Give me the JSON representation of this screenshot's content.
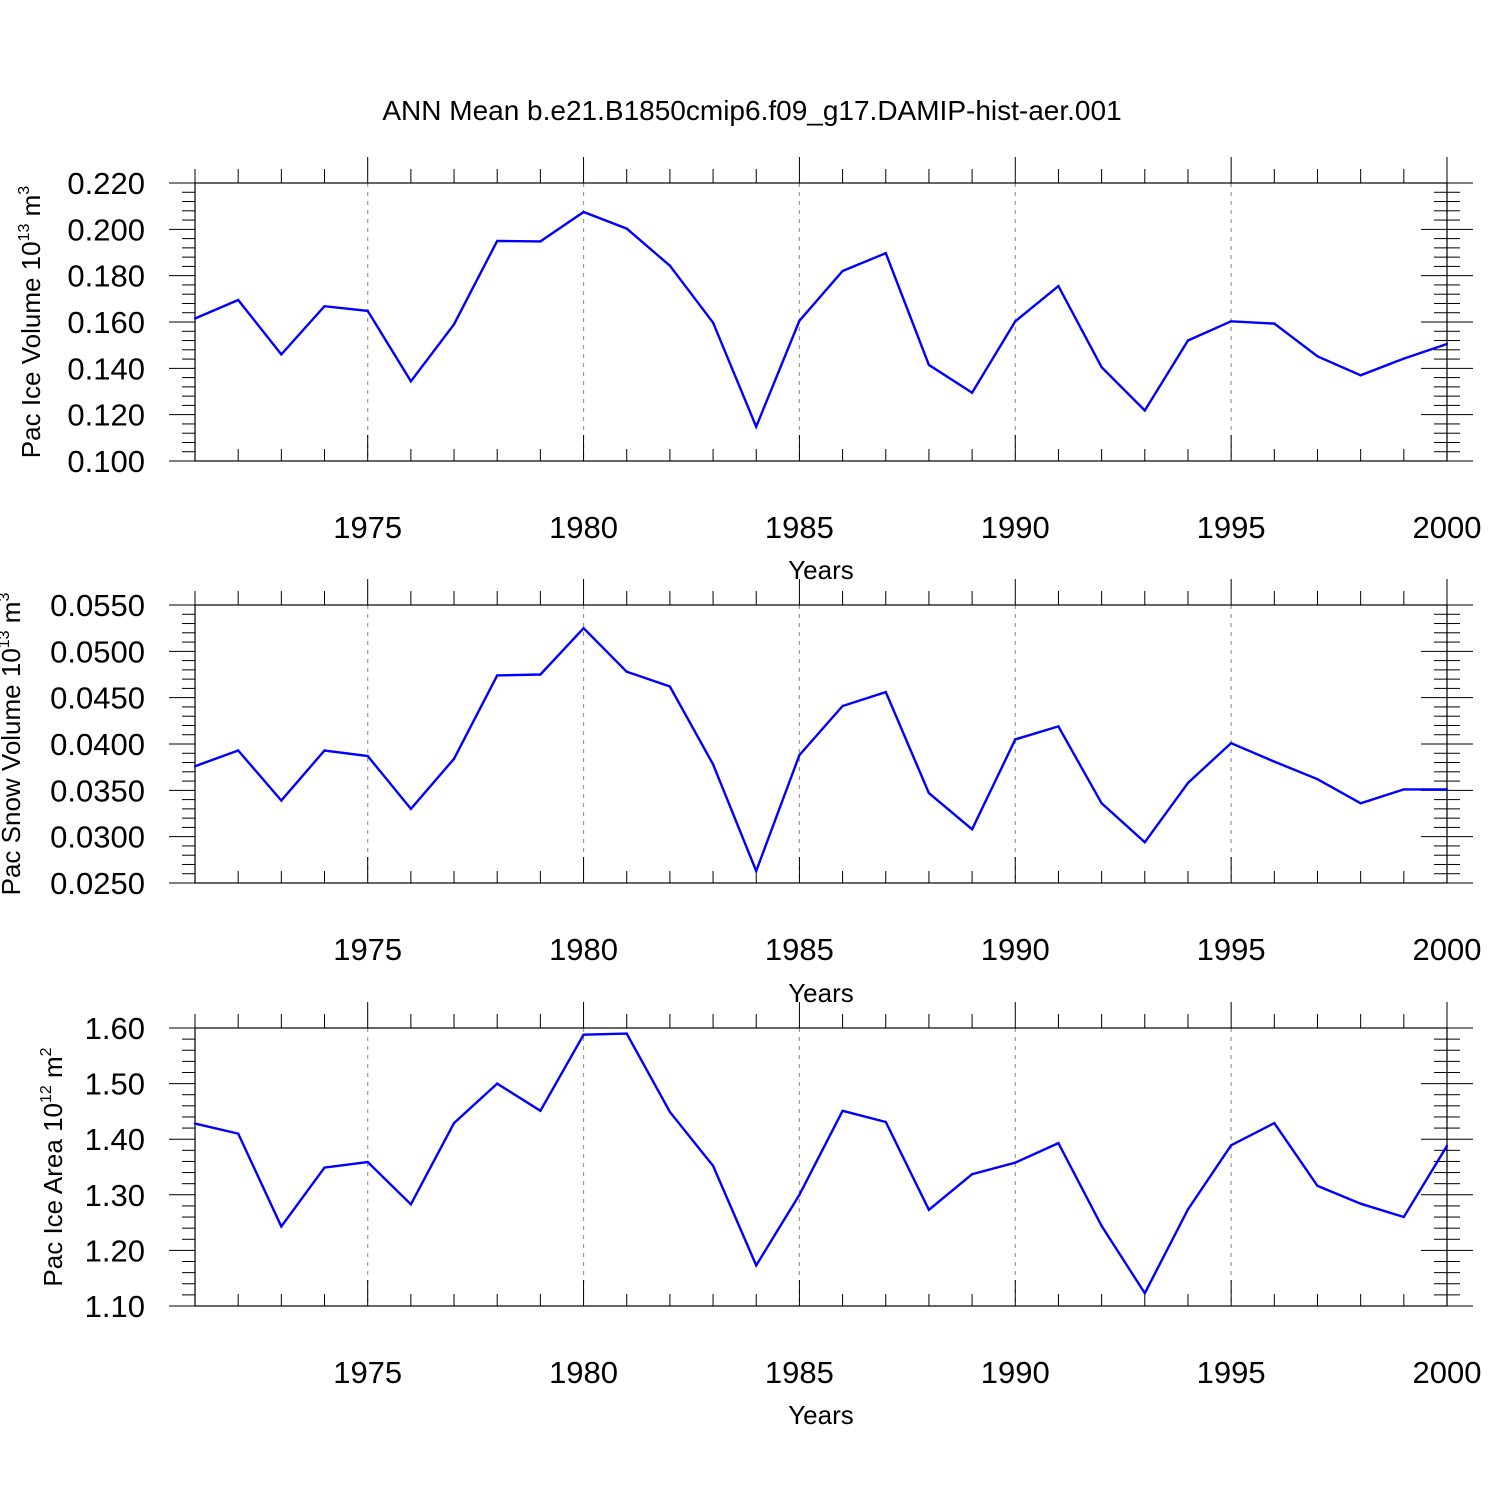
{
  "figure_title": "ANN Mean b.e21.B1850cmip6.f09_g17.DAMIP-hist-aer.001",
  "line_color": "#0000ff",
  "chart_data": [
    {
      "type": "line",
      "title": "ANN Mean b.e21.B1850cmip6.f09_g17.DAMIP-hist-aer.001",
      "xlabel": "Years",
      "ylabel_text": "Pac Ice Volume 10",
      "ylabel_exp": "13",
      "ylabel_unit": " m",
      "ylabel_unit_exp": "3",
      "xlim": [
        1971,
        2000
      ],
      "ylim": [
        0.1,
        0.22
      ],
      "y_ticks": [
        0.1,
        0.12,
        0.14,
        0.16,
        0.18,
        0.2,
        0.22
      ],
      "y_tick_labels": [
        "0.100",
        "0.120",
        "0.140",
        "0.160",
        "0.180",
        "0.200",
        "0.220"
      ],
      "x_ticks": [
        1975,
        1980,
        1985,
        1990,
        1995,
        2000
      ],
      "x_tick_labels": [
        "1975",
        "1980",
        "1985",
        "1990",
        "1995",
        "2000"
      ],
      "grid": "vertical dashed at major x ticks",
      "x": [
        1971,
        1972,
        1973,
        1974,
        1975,
        1976,
        1977,
        1978,
        1979,
        1980,
        1981,
        1982,
        1983,
        1984,
        1985,
        1986,
        1987,
        1988,
        1989,
        1990,
        1991,
        1992,
        1993,
        1994,
        1995,
        1996,
        1997,
        1998,
        1999,
        2000
      ],
      "series": [
        {
          "name": "Pac Ice Volume",
          "values": [
            0.1615,
            0.1695,
            0.146,
            0.1668,
            0.1648,
            0.1344,
            0.159,
            0.195,
            0.1948,
            0.2075,
            0.2003,
            0.1843,
            0.1597,
            0.1148,
            0.1605,
            0.182,
            0.1897,
            0.1415,
            0.1295,
            0.1603,
            0.1755,
            0.1405,
            0.1218,
            0.152,
            0.1603,
            0.1593,
            0.1452,
            0.137,
            0.1442,
            0.1505
          ]
        }
      ]
    },
    {
      "type": "line",
      "xlabel": "Years",
      "ylabel_text": "Pac Snow Volume 10",
      "ylabel_exp": "13",
      "ylabel_unit": " m",
      "ylabel_unit_exp": "3",
      "xlim": [
        1971,
        2000
      ],
      "ylim": [
        0.025,
        0.055
      ],
      "y_ticks": [
        0.025,
        0.03,
        0.035,
        0.04,
        0.045,
        0.05,
        0.055
      ],
      "y_tick_labels": [
        "0.0250",
        "0.0300",
        "0.0350",
        "0.0400",
        "0.0450",
        "0.0500",
        "0.0550"
      ],
      "x_ticks": [
        1975,
        1980,
        1985,
        1990,
        1995,
        2000
      ],
      "x_tick_labels": [
        "1975",
        "1980",
        "1985",
        "1990",
        "1995",
        "2000"
      ],
      "grid": "vertical dashed at major x ticks",
      "x": [
        1971,
        1972,
        1973,
        1974,
        1975,
        1976,
        1977,
        1978,
        1979,
        1980,
        1981,
        1982,
        1983,
        1984,
        1985,
        1986,
        1987,
        1988,
        1989,
        1990,
        1991,
        1992,
        1993,
        1994,
        1995,
        1996,
        1997,
        1998,
        1999,
        2000
      ],
      "series": [
        {
          "name": "Pac Snow Volume",
          "values": [
            0.0376,
            0.0393,
            0.0339,
            0.0393,
            0.0387,
            0.033,
            0.0384,
            0.0474,
            0.0475,
            0.0525,
            0.0478,
            0.0462,
            0.0378,
            0.0263,
            0.0388,
            0.0441,
            0.0456,
            0.0347,
            0.0308,
            0.0405,
            0.0419,
            0.0336,
            0.0294,
            0.0358,
            0.0401,
            0.0381,
            0.0362,
            0.0336,
            0.0351,
            0.0351
          ]
        }
      ]
    },
    {
      "type": "line",
      "xlabel": "Years",
      "ylabel_text": "Pac Ice Area 10",
      "ylabel_exp": "12",
      "ylabel_unit": " m",
      "ylabel_unit_exp": "2",
      "xlim": [
        1971,
        2000
      ],
      "ylim": [
        1.1,
        1.6
      ],
      "y_ticks": [
        1.1,
        1.2,
        1.3,
        1.4,
        1.5,
        1.6
      ],
      "y_tick_labels": [
        "1.10",
        "1.20",
        "1.30",
        "1.40",
        "1.50",
        "1.60"
      ],
      "x_ticks": [
        1975,
        1980,
        1985,
        1990,
        1995,
        2000
      ],
      "x_tick_labels": [
        "1975",
        "1980",
        "1985",
        "1990",
        "1995",
        "2000"
      ],
      "grid": "vertical dashed at major x ticks",
      "x": [
        1971,
        1972,
        1973,
        1974,
        1975,
        1976,
        1977,
        1978,
        1979,
        1980,
        1981,
        1982,
        1983,
        1984,
        1985,
        1986,
        1987,
        1988,
        1989,
        1990,
        1991,
        1992,
        1993,
        1994,
        1995,
        1996,
        1997,
        1998,
        1999,
        2000
      ],
      "series": [
        {
          "name": "Pac Ice Area",
          "values": [
            1.428,
            1.41,
            1.243,
            1.349,
            1.359,
            1.283,
            1.429,
            1.5,
            1.451,
            1.588,
            1.59,
            1.449,
            1.352,
            1.173,
            1.3,
            1.451,
            1.431,
            1.273,
            1.337,
            1.358,
            1.393,
            1.244,
            1.123,
            1.274,
            1.389,
            1.429,
            1.316,
            1.284,
            1.26,
            1.388
          ]
        }
      ]
    }
  ]
}
